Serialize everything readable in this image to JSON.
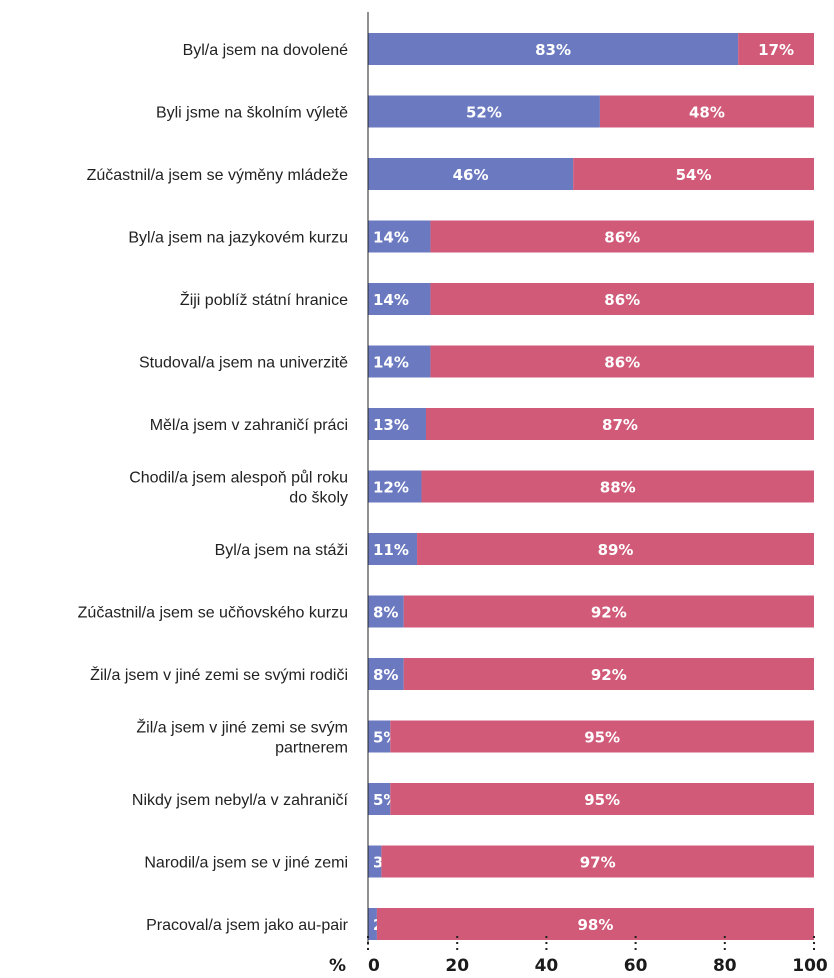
{
  "chart_data": {
    "type": "bar",
    "orientation": "horizontal",
    "stacked": true,
    "categories": [
      [
        "Byl/a jsem na dovolené"
      ],
      [
        "Byli jsme na školním výletě"
      ],
      [
        "Zúčastnil/a jsem se výměny mládeže"
      ],
      [
        "Byl/a jsem na jazykovém kurzu"
      ],
      [
        "Žiji poblíž státní hranice"
      ],
      [
        "Studoval/a jsem na univerzitě"
      ],
      [
        "Měl/a jsem v zahraničí práci"
      ],
      [
        "Chodil/a jsem alespoň půl roku",
        "do školy"
      ],
      [
        "Byl/a jsem na stáži"
      ],
      [
        "Zúčastnil/a jsem se učňovského kurzu"
      ],
      [
        "Žil/a jsem v jiné zemi se svými rodiči"
      ],
      [
        "Žil/a jsem v jiné zemi se svým",
        "partnerem"
      ],
      [
        "Nikdy jsem nebyl/a v zahraničí"
      ],
      [
        "Narodil/a jsem se v jiné zemi"
      ],
      [
        "Pracoval/a jsem jako au-pair"
      ]
    ],
    "series": [
      {
        "values": [
          83,
          52,
          46,
          14,
          14,
          14,
          13,
          12,
          11,
          8,
          8,
          5,
          5,
          3,
          2
        ],
        "color": "#6b7ac0"
      },
      {
        "values": [
          17,
          48,
          54,
          86,
          86,
          86,
          87,
          88,
          89,
          92,
          92,
          95,
          95,
          97,
          98
        ],
        "color": "#d05a78"
      }
    ],
    "value_suffix": "%",
    "xlabel": "%",
    "xlim": [
      0,
      100
    ],
    "xticks": [
      0,
      20,
      40,
      60,
      80,
      100
    ],
    "grid": false
  }
}
